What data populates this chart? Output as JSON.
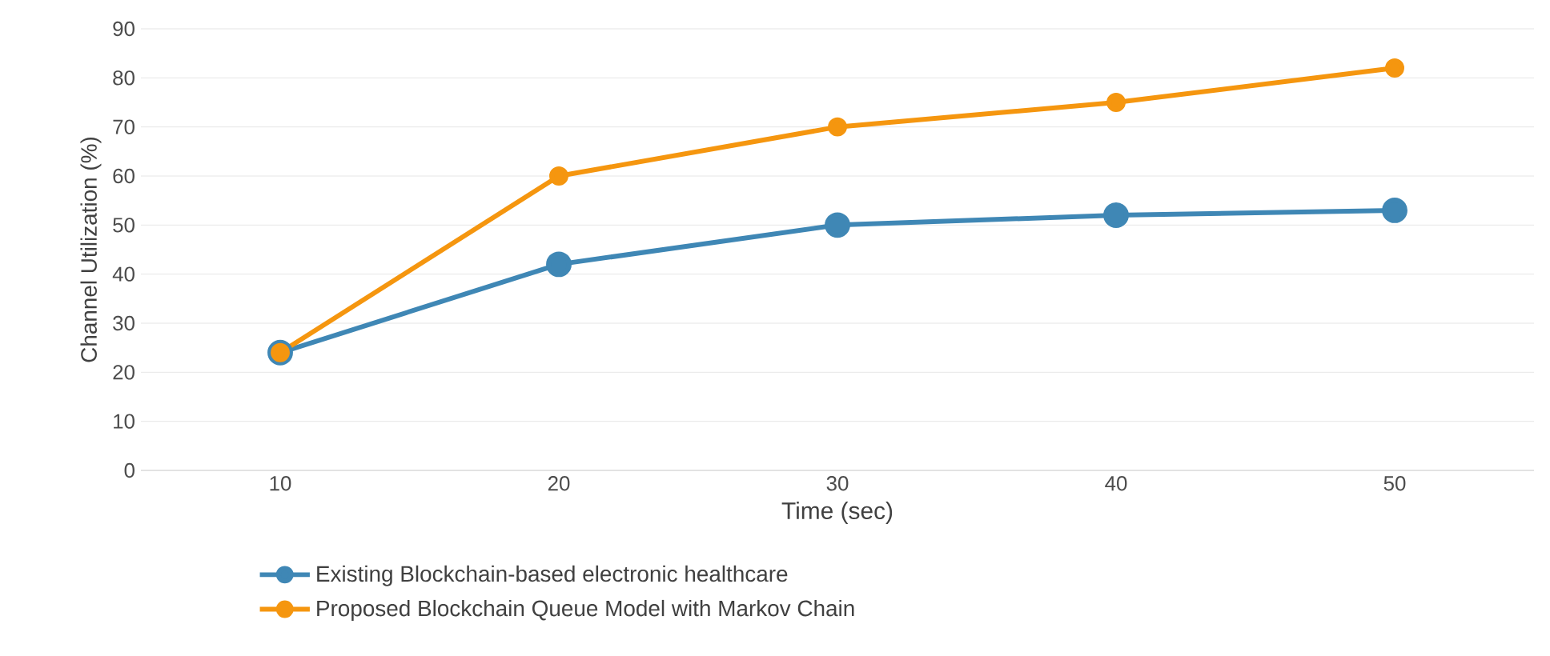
{
  "chart_data": {
    "type": "line",
    "xlabel": "Time (sec)",
    "ylabel": "Channel Utilization (%)",
    "categories": [
      "10",
      "20",
      "30",
      "40",
      "50"
    ],
    "series": [
      {
        "name": "Existing Blockchain-based electronic healthcare",
        "color": "#3f87b5",
        "values": [
          24,
          42,
          50,
          52,
          53
        ]
      },
      {
        "name": "Proposed Blockchain Queue Model with Markov Chain",
        "color": "#f5960f",
        "values": [
          24,
          60,
          70,
          75,
          82
        ]
      }
    ],
    "ylim": [
      0,
      90
    ],
    "yticks": [
      0,
      10,
      20,
      30,
      40,
      50,
      60,
      70,
      80,
      90
    ],
    "grid": "y",
    "legend": "bottom",
    "marker": "circle",
    "line_style": "solid"
  }
}
